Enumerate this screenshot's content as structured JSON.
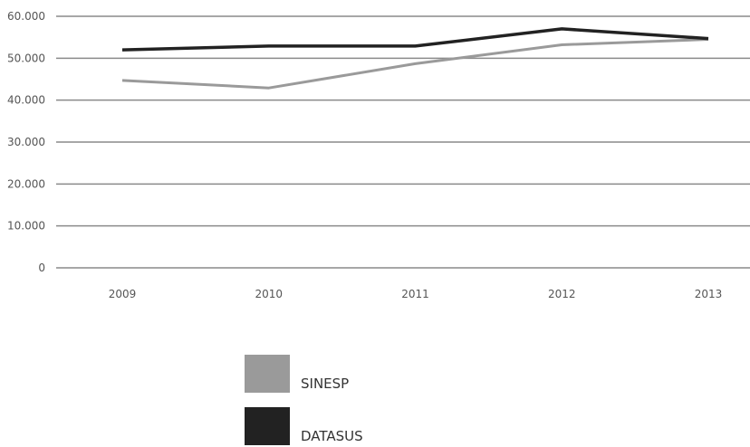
{
  "chart_data": {
    "type": "line",
    "categories": [
      "2009",
      "2010",
      "2011",
      "2012",
      "2013"
    ],
    "y_ticks": [
      "0",
      "10.000",
      "20.000",
      "30.000",
      "40.000",
      "50.000",
      "60.000"
    ],
    "ylim": [
      0,
      60000
    ],
    "grid": true,
    "legend_position": "bottom-center",
    "series": [
      {
        "name": "SINESP",
        "color": "#9a9a9a",
        "values": [
          44700,
          42900,
          48700,
          53200,
          54500
        ]
      },
      {
        "name": "DATASUS",
        "color": "#222222",
        "values": [
          52000,
          52900,
          52900,
          57000,
          54700
        ]
      }
    ]
  }
}
